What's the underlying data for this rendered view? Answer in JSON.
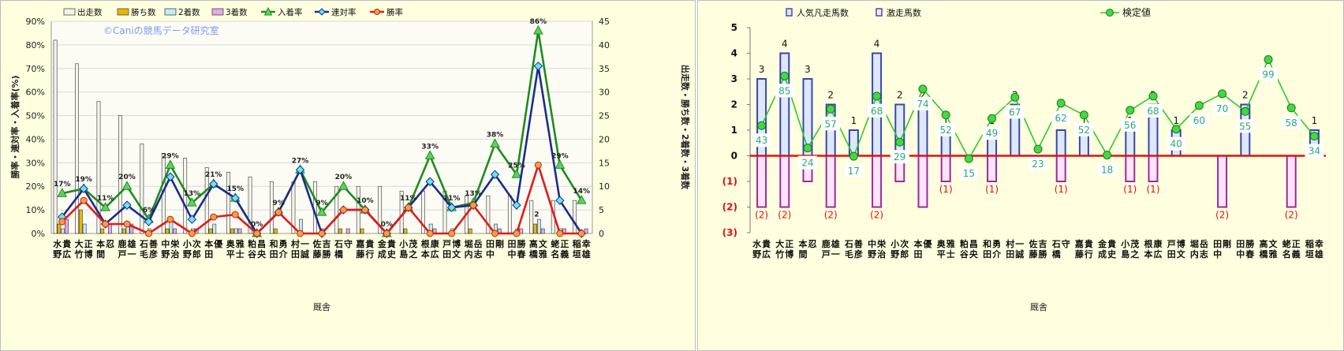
{
  "left_chart": {
    "legend": [
      "出走数",
      "勝ち数",
      "2着数",
      "3着数",
      "入着率",
      "連対率",
      "勝率"
    ],
    "watermark": "©Caniの競馬データ研究室",
    "ylabel_left": "勝率・連対率・入着率(%)",
    "ylabel_right": "出走数・勝ち数・2着数・3着数",
    "xlabel": "厩舎",
    "left_ticks": [
      "0%",
      "10%",
      "20%",
      "30%",
      "40%",
      "50%",
      "60%",
      "70%",
      "80%",
      "90%"
    ],
    "right_ticks": [
      "0",
      "5",
      "10",
      "15",
      "20",
      "25",
      "30",
      "35",
      "40",
      "45"
    ],
    "pct_labels": [
      "17%",
      "19%",
      "11%",
      "20%",
      "6%",
      "29%",
      "13%",
      "21%",
      "15%",
      "0%",
      "9%",
      "27%",
      "9%",
      "20%",
      "10%",
      "0%",
      "11%",
      "33%",
      "11%",
      "13%",
      "38%",
      "25%",
      "86%",
      "29%",
      "14%"
    ],
    "count_label": "2"
  },
  "right_chart": {
    "legend": [
      "人気凡走馬数",
      "激走馬数",
      "検定値"
    ],
    "xlabel": "厩舎",
    "yticks": [
      "5",
      "4",
      "3",
      "2",
      "1",
      "0",
      "(1)",
      "(2)",
      "(3)"
    ],
    "top_labels": [
      "3",
      "4",
      "3",
      "2",
      "1",
      "4",
      "2",
      "2",
      "1",
      "",
      "1",
      "2",
      "",
      "1",
      "1",
      "",
      "1",
      "2",
      "1",
      "",
      "",
      "2",
      "",
      "",
      "1"
    ],
    "bottom_labels": [
      "(2)",
      "(2)",
      "",
      "(2)",
      "",
      "(2)",
      "",
      "",
      "(1)",
      "",
      "(1)",
      "",
      "",
      "(1)",
      "",
      "",
      "(1)",
      "(1)",
      "",
      "",
      "(2)",
      "",
      "",
      "(2)",
      ""
    ],
    "value_labels": [
      "43",
      "85",
      "24",
      "57",
      "17",
      "68",
      "29",
      "74",
      "52",
      "15",
      "49",
      "67",
      "23",
      "62",
      "52",
      "18",
      "56",
      "68",
      "40",
      "60",
      "70",
      "55",
      "99",
      "58",
      "34"
    ]
  },
  "colors": {
    "panel_bg": "#ffffe0",
    "plot_bg": "#fcfcf4",
    "starts": "#f4f4ec",
    "wins": "#e8b800",
    "second": "#c4eaf4",
    "third": "#e6a8e6",
    "placing_rate": "#1e8c1e",
    "top2_rate": "#1c2c8c",
    "win_rate": "#e01a1a",
    "popular_fail": "#3548a8",
    "upset": "#9a2a9a",
    "test_value": "#2ec82e",
    "axis_red": "#e01010",
    "value_text": "#2aa878"
  },
  "chart_data": [
    {
      "type": "bar",
      "title": "",
      "xlabel": "厩舎",
      "ylabel": "勝率・連対率・入着率(%)",
      "ylabel_secondary": "出走数・勝ち数・2着数・3着数",
      "ylim": [
        0,
        0.9
      ],
      "ylim_secondary": [
        0,
        45
      ],
      "legend_position": "top",
      "grid": true,
      "categories": [
        "水野 貴広",
        "大竹 正博",
        "本間 忍",
        "鹿戸 雄一",
        "石毛 善彦",
        "中野 栄治",
        "小野 次郎",
        "本田 優",
        "奥平 雅士",
        "粕谷 昌央",
        "和田 勇介",
        "村田 一誠",
        "佐藤 吉勝",
        "石橋 守",
        "嘉藤 貴行",
        "金成 貴史",
        "小島 茂之",
        "根本 康広",
        "戸田 博文",
        "堀内 岳志",
        "田中 剛",
        "田中 勝春",
        "高橋 文雅",
        "蛯名 正義",
        "稲垣 幸雄"
      ],
      "series": [
        {
          "name": "出走数",
          "axis": "right",
          "values": [
            41,
            36,
            28,
            25,
            19,
            17,
            16,
            14,
            13,
            12,
            11,
            11,
            11,
            10,
            10,
            10,
            9,
            9,
            9,
            8,
            8,
            8,
            7,
            7,
            7
          ]
        },
        {
          "name": "勝ち数",
          "axis": "right",
          "values": [
            2,
            5,
            1,
            1,
            0,
            1,
            0,
            1,
            1,
            0,
            1,
            0,
            0,
            1,
            1,
            0,
            1,
            0,
            0,
            1,
            0,
            0,
            2,
            0,
            0
          ]
        },
        {
          "name": "2着数",
          "axis": "right",
          "values": [
            1,
            2,
            0,
            2,
            1,
            3,
            1,
            2,
            1,
            0,
            0,
            3,
            1,
            0,
            0,
            0,
            0,
            2,
            1,
            0,
            2,
            1,
            3,
            1,
            0
          ]
        },
        {
          "name": "3着数",
          "axis": "right",
          "values": [
            3,
            0,
            2,
            2,
            0,
            1,
            1,
            0,
            1,
            0,
            0,
            0,
            0,
            1,
            0,
            0,
            0,
            1,
            0,
            0,
            1,
            1,
            1,
            1,
            1
          ]
        },
        {
          "name": "入着率",
          "axis": "left",
          "values": [
            0.17,
            0.19,
            0.11,
            0.2,
            0.06,
            0.29,
            0.13,
            0.21,
            0.15,
            0.0,
            0.09,
            0.27,
            0.09,
            0.2,
            0.1,
            0.0,
            0.11,
            0.33,
            0.11,
            0.13,
            0.38,
            0.25,
            0.86,
            0.29,
            0.14
          ]
        },
        {
          "name": "連対率",
          "axis": "left",
          "values": [
            0.07,
            0.19,
            0.04,
            0.12,
            0.05,
            0.24,
            0.06,
            0.21,
            0.15,
            0.0,
            0.09,
            0.27,
            0.0,
            0.1,
            0.1,
            0.0,
            0.11,
            0.22,
            0.11,
            0.12,
            0.25,
            0.12,
            0.71,
            0.14,
            0.0
          ]
        },
        {
          "name": "勝率",
          "axis": "left",
          "values": [
            0.05,
            0.14,
            0.04,
            0.04,
            0.0,
            0.06,
            0.0,
            0.07,
            0.08,
            0.0,
            0.09,
            0.0,
            0.0,
            0.1,
            0.1,
            0.0,
            0.11,
            0.0,
            0.0,
            0.12,
            0.0,
            0.0,
            0.29,
            0.0,
            0.0
          ]
        }
      ]
    },
    {
      "type": "bar",
      "title": "",
      "xlabel": "厩舎",
      "ylim": [
        -3,
        5
      ],
      "legend_position": "top",
      "grid": false,
      "categories": [
        "水野 貴広",
        "大竹 正博",
        "本間 忍",
        "鹿戸 雄一",
        "石毛 善彦",
        "中野 栄治",
        "小野 次郎",
        "本田 優",
        "奥平 雅士",
        "粕谷 昌央",
        "和田 勇介",
        "村田 一誠",
        "佐藤 吉勝",
        "石橋 守",
        "嘉藤 貴行",
        "金成 貴史",
        "小島 茂之",
        "根本 康広",
        "戸田 博文",
        "堀内 岳志",
        "田中 剛",
        "田中 勝春",
        "高橋 文雅",
        "蛯名 正義",
        "稲垣 幸雄"
      ],
      "series": [
        {
          "name": "人気凡走馬数",
          "values": [
            3,
            4,
            3,
            2,
            1,
            4,
            2,
            2,
            1,
            0,
            1,
            2,
            0,
            1,
            1,
            0,
            1,
            2,
            1,
            0,
            0,
            2,
            0,
            0,
            1
          ]
        },
        {
          "name": "激走馬数",
          "values": [
            -2,
            -2,
            -1,
            -2,
            0,
            -2,
            -1,
            -2,
            -1,
            0,
            -1,
            0,
            0,
            -1,
            0,
            0,
            -1,
            -1,
            0,
            0,
            -2,
            0,
            0,
            -2,
            0
          ]
        },
        {
          "name": "検定値",
          "values": [
            43,
            85,
            24,
            57,
            17,
            68,
            29,
            74,
            52,
            15,
            49,
            67,
            23,
            62,
            52,
            18,
            56,
            68,
            40,
            60,
            70,
            55,
            99,
            58,
            34
          ]
        }
      ]
    }
  ]
}
